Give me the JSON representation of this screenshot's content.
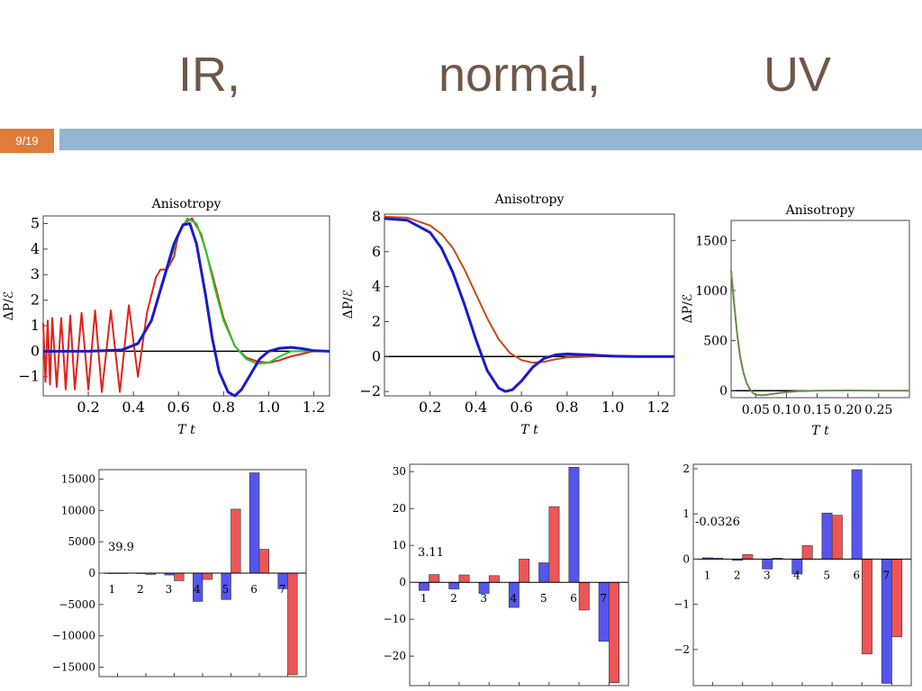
{
  "slide": {
    "titles": [
      "IR,",
      "normal,",
      "UV"
    ],
    "slide_number": "9/19",
    "colors": {
      "title": "#6f5849",
      "badge": "#e07c3a",
      "bar": "#94b6d2"
    }
  },
  "chart_data": [
    {
      "type": "line",
      "title": "Anisotropy",
      "xlabel": "T t",
      "ylabel": "ΔP/ℰ",
      "xlim": [
        0,
        1.27
      ],
      "ylim": [
        -1.75,
        5.3
      ],
      "xticks": [
        "0.2",
        "0.4",
        "0.6",
        "0.8",
        "1.0",
        "1.2"
      ],
      "yticks": [
        "5",
        "4",
        "3",
        "2",
        "1",
        "0",
        "−1"
      ],
      "series": [
        {
          "color": "#e0241c",
          "x": [
            0.0,
            0.01,
            0.02,
            0.03,
            0.04,
            0.06,
            0.08,
            0.1,
            0.12,
            0.14,
            0.17,
            0.2,
            0.23,
            0.26,
            0.3,
            0.34,
            0.38,
            0.42,
            0.46,
            0.5,
            0.52,
            0.55,
            0.58,
            0.6,
            0.63,
            0.66,
            0.7,
            0.75,
            0.8,
            0.85,
            0.9,
            0.95,
            1.0,
            1.05,
            1.1,
            1.2,
            1.27
          ],
          "y": [
            1.1,
            -1.2,
            1.2,
            -1.3,
            1.3,
            -1.4,
            1.3,
            -1.5,
            1.4,
            -1.5,
            1.5,
            -1.5,
            1.6,
            -1.6,
            1.6,
            -1.6,
            1.8,
            -1.0,
            1.5,
            2.9,
            3.2,
            3.2,
            3.7,
            4.6,
            5.05,
            5.2,
            4.6,
            3.0,
            1.3,
            0.2,
            -0.25,
            -0.4,
            -0.45,
            -0.35,
            -0.2,
            0.0,
            0.0
          ]
        },
        {
          "color": "#22cc22",
          "x": [
            0.0,
            0.2,
            0.35,
            0.42,
            0.48,
            0.55,
            0.6,
            0.64,
            0.68,
            0.72,
            0.76,
            0.8,
            0.85,
            0.9,
            0.95,
            1.0,
            1.05,
            1.1,
            1.2,
            1.27
          ],
          "y": [
            0.0,
            0.0,
            0.05,
            0.3,
            1.2,
            3.2,
            4.6,
            5.2,
            5.0,
            4.0,
            2.5,
            1.2,
            0.2,
            -0.3,
            -0.5,
            -0.45,
            -0.2,
            0.0,
            0.0,
            0.0
          ]
        },
        {
          "color": "#1a1acc",
          "x": [
            0.0,
            0.2,
            0.35,
            0.42,
            0.48,
            0.54,
            0.58,
            0.62,
            0.65,
            0.68,
            0.72,
            0.75,
            0.78,
            0.82,
            0.85,
            0.88,
            0.92,
            0.96,
            1.0,
            1.05,
            1.1,
            1.15,
            1.2,
            1.27
          ],
          "y": [
            0.0,
            0.0,
            0.05,
            0.3,
            1.2,
            3.0,
            4.2,
            4.95,
            5.0,
            4.2,
            2.2,
            0.5,
            -0.8,
            -1.6,
            -1.75,
            -1.5,
            -0.9,
            -0.3,
            0.0,
            0.12,
            0.15,
            0.1,
            0.02,
            0.0
          ]
        }
      ]
    },
    {
      "type": "line",
      "title": "Anisotropy",
      "xlabel": "T t",
      "ylabel": "ΔP/ℰ",
      "xlim": [
        0,
        1.27
      ],
      "ylim": [
        -2.25,
        8.15
      ],
      "xticks": [
        "0.2",
        "0.4",
        "0.6",
        "0.8",
        "1.0",
        "1.2"
      ],
      "yticks": [
        "8",
        "6",
        "4",
        "2",
        "0",
        "−2"
      ],
      "series": [
        {
          "color": "#c84a1a",
          "x": [
            0.0,
            0.1,
            0.2,
            0.25,
            0.3,
            0.35,
            0.4,
            0.45,
            0.5,
            0.55,
            0.6,
            0.65,
            0.7,
            0.75,
            0.8,
            0.9,
            1.0,
            1.1,
            1.27
          ],
          "y": [
            8.0,
            7.95,
            7.5,
            7.0,
            6.2,
            5.0,
            3.6,
            2.2,
            1.0,
            0.2,
            -0.2,
            -0.35,
            -0.3,
            -0.15,
            -0.05,
            0.0,
            0.05,
            0.02,
            0.0
          ]
        },
        {
          "color": "#1a1acc",
          "x": [
            0.0,
            0.1,
            0.2,
            0.25,
            0.3,
            0.35,
            0.4,
            0.45,
            0.5,
            0.53,
            0.56,
            0.6,
            0.65,
            0.7,
            0.75,
            0.8,
            0.9,
            1.0,
            1.1,
            1.27
          ],
          "y": [
            7.9,
            7.8,
            7.1,
            6.2,
            4.8,
            3.0,
            1.0,
            -0.8,
            -1.8,
            -2.0,
            -1.9,
            -1.4,
            -0.6,
            -0.1,
            0.1,
            0.15,
            0.1,
            0.02,
            0.0,
            0.0
          ]
        }
      ]
    },
    {
      "type": "line",
      "title": "Anisotropy",
      "xlabel": "T t",
      "ylabel": "ΔP/ℰ",
      "xlim": [
        0.01,
        0.3
      ],
      "ylim": [
        -70,
        1700
      ],
      "xticks": [
        "0.05",
        "0.10",
        "0.15",
        "0.20",
        "0.25"
      ],
      "yticks": [
        "1500",
        "1000",
        "500",
        "0"
      ],
      "series": [
        {
          "color": "#6b8a4a",
          "x": [
            0.01,
            0.013,
            0.016,
            0.02,
            0.025,
            0.03,
            0.035,
            0.04,
            0.045,
            0.05,
            0.06,
            0.07,
            0.08,
            0.1,
            0.12,
            0.15,
            0.2,
            0.25,
            0.3
          ],
          "y": [
            1200,
            1000,
            800,
            560,
            330,
            180,
            80,
            20,
            -20,
            -40,
            -45,
            -40,
            -30,
            -15,
            -5,
            0,
            2,
            0,
            0
          ]
        }
      ]
    },
    {
      "type": "bar",
      "annotation": "39.9",
      "categories": [
        "1",
        "2",
        "3",
        "4",
        "5",
        "6",
        "7"
      ],
      "ylim": [
        -16500,
        16500
      ],
      "yticks": [
        "15000",
        "10000",
        "5000",
        "0",
        "−5000",
        "−10000",
        "−15000"
      ],
      "series": [
        {
          "color": "#5555ee",
          "values": [
            0,
            0,
            -300,
            -4500,
            -4200,
            16000,
            -2500
          ]
        },
        {
          "color": "#ee5555",
          "values": [
            0,
            -200,
            -1200,
            -1000,
            10200,
            3800,
            -16200
          ]
        }
      ]
    },
    {
      "type": "bar",
      "annotation": "3.11",
      "categories": [
        "1",
        "2",
        "3",
        "4",
        "5",
        "6",
        "7"
      ],
      "ylim": [
        -28,
        32
      ],
      "yticks": [
        "30",
        "20",
        "10",
        "0",
        "−10",
        "−20"
      ],
      "series": [
        {
          "color": "#5555ee",
          "values": [
            -2.2,
            -1.8,
            -3.0,
            -6.8,
            5.3,
            31.2,
            -16.0
          ]
        },
        {
          "color": "#ee5555",
          "values": [
            2.1,
            2.0,
            1.8,
            6.3,
            20.5,
            -7.5,
            -27.2
          ]
        }
      ]
    },
    {
      "type": "bar",
      "annotation": "-0.0326",
      "categories": [
        "1",
        "2",
        "3",
        "4",
        "5",
        "6",
        "7"
      ],
      "ylim": [
        -2.8,
        2.1
      ],
      "yticks": [
        "2",
        "1",
        "0",
        "−1",
        "−2"
      ],
      "series": [
        {
          "color": "#5555ee",
          "values": [
            0.03,
            -0.03,
            -0.22,
            -0.33,
            1.02,
            1.98,
            -2.75
          ]
        },
        {
          "color": "#ee5555",
          "values": [
            0.02,
            0.1,
            0.02,
            0.3,
            0.97,
            -2.1,
            -1.72
          ]
        }
      ]
    }
  ]
}
